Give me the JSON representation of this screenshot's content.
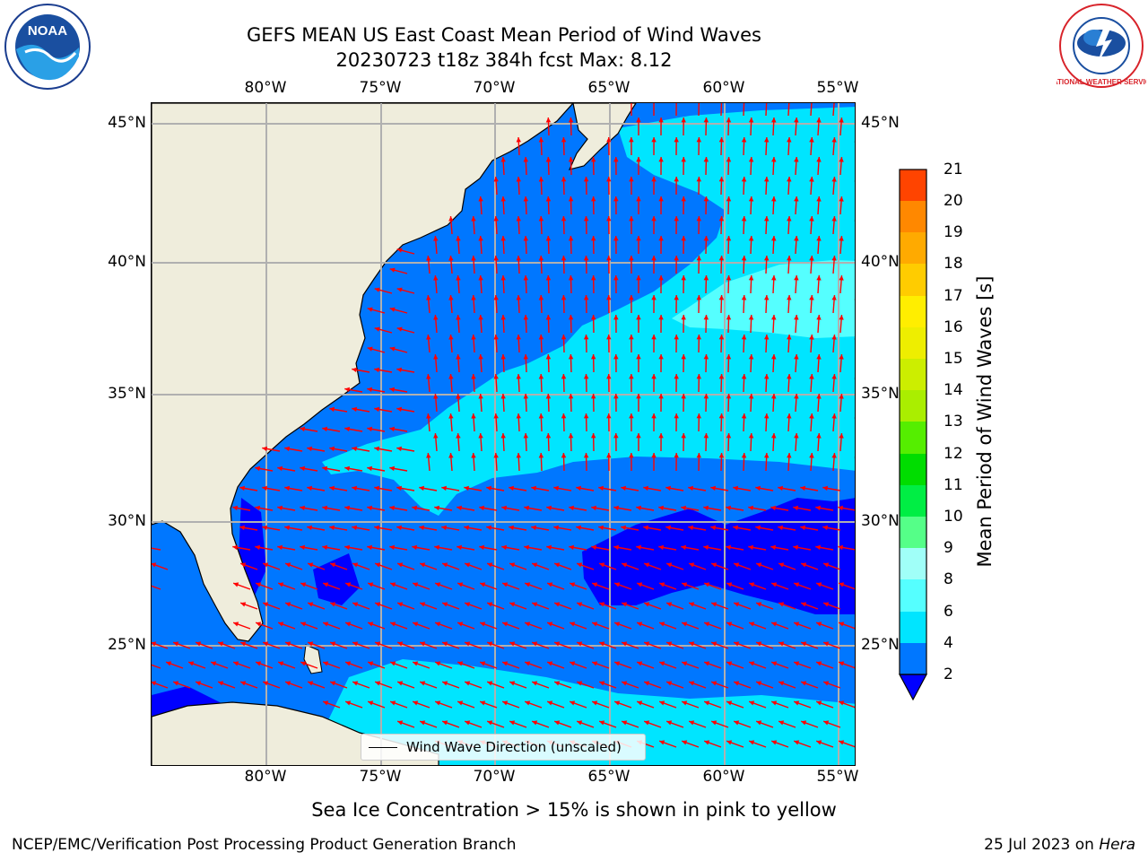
{
  "header": {
    "title_line1": "GEFS MEAN US East Coast Mean Period of Wind Waves",
    "title_line2": "20230723 t18z 384h fcst   Max: 8.12"
  },
  "logos": {
    "left": {
      "name": "noaa-logo",
      "text": "NOAA"
    },
    "right": {
      "name": "nws-logo",
      "text": "NATIONAL WEATHER SERVICE"
    }
  },
  "map": {
    "lon_ticks": [
      "80°W",
      "75°W",
      "70°W",
      "65°W",
      "60°W",
      "55°W"
    ],
    "lat_ticks": [
      "45°N",
      "40°N",
      "35°N",
      "30°N",
      "25°N"
    ],
    "lon_range": [
      -85,
      -54
    ],
    "lat_range": [
      20.4,
      46
    ],
    "colors": {
      "land": "#efeddc",
      "coast": "#000000",
      "grid": "#b0b0b0",
      "arrow": "#ff0000",
      "lvl_2_4": "#0077ff",
      "lvl_4_6": "#00e5ff",
      "lvl_6_8": "#55ffff",
      "lvl_lt2": "#0000ff"
    },
    "legend_label": "Wind Wave Direction (unscaled)"
  },
  "colorbar": {
    "label": "Mean Period of Wind Waves [s]",
    "ticks": [
      "2",
      "4",
      "6",
      "8",
      "9",
      "10",
      "11",
      "12",
      "13",
      "14",
      "15",
      "16",
      "17",
      "18",
      "19",
      "20",
      "21"
    ],
    "colors": [
      "#0077ff",
      "#00e5ff",
      "#55ffff",
      "#a0fff8",
      "#55ff88",
      "#00ee44",
      "#00dd00",
      "#55ee00",
      "#aaee00",
      "#ccee00",
      "#eeee00",
      "#ffee00",
      "#ffcc00",
      "#ffaa00",
      "#ff8800",
      "#ff4400",
      "#ff2200",
      "#ff0000"
    ],
    "under_color": "#0000ff"
  },
  "subtitle": "Sea Ice Concentration > 15% is shown in pink to yellow",
  "footer": {
    "left": "NCEP/EMC/Verification Post Processing Product Generation Branch",
    "right_date": "25 Jul 2023 on ",
    "right_host": "Hera"
  }
}
